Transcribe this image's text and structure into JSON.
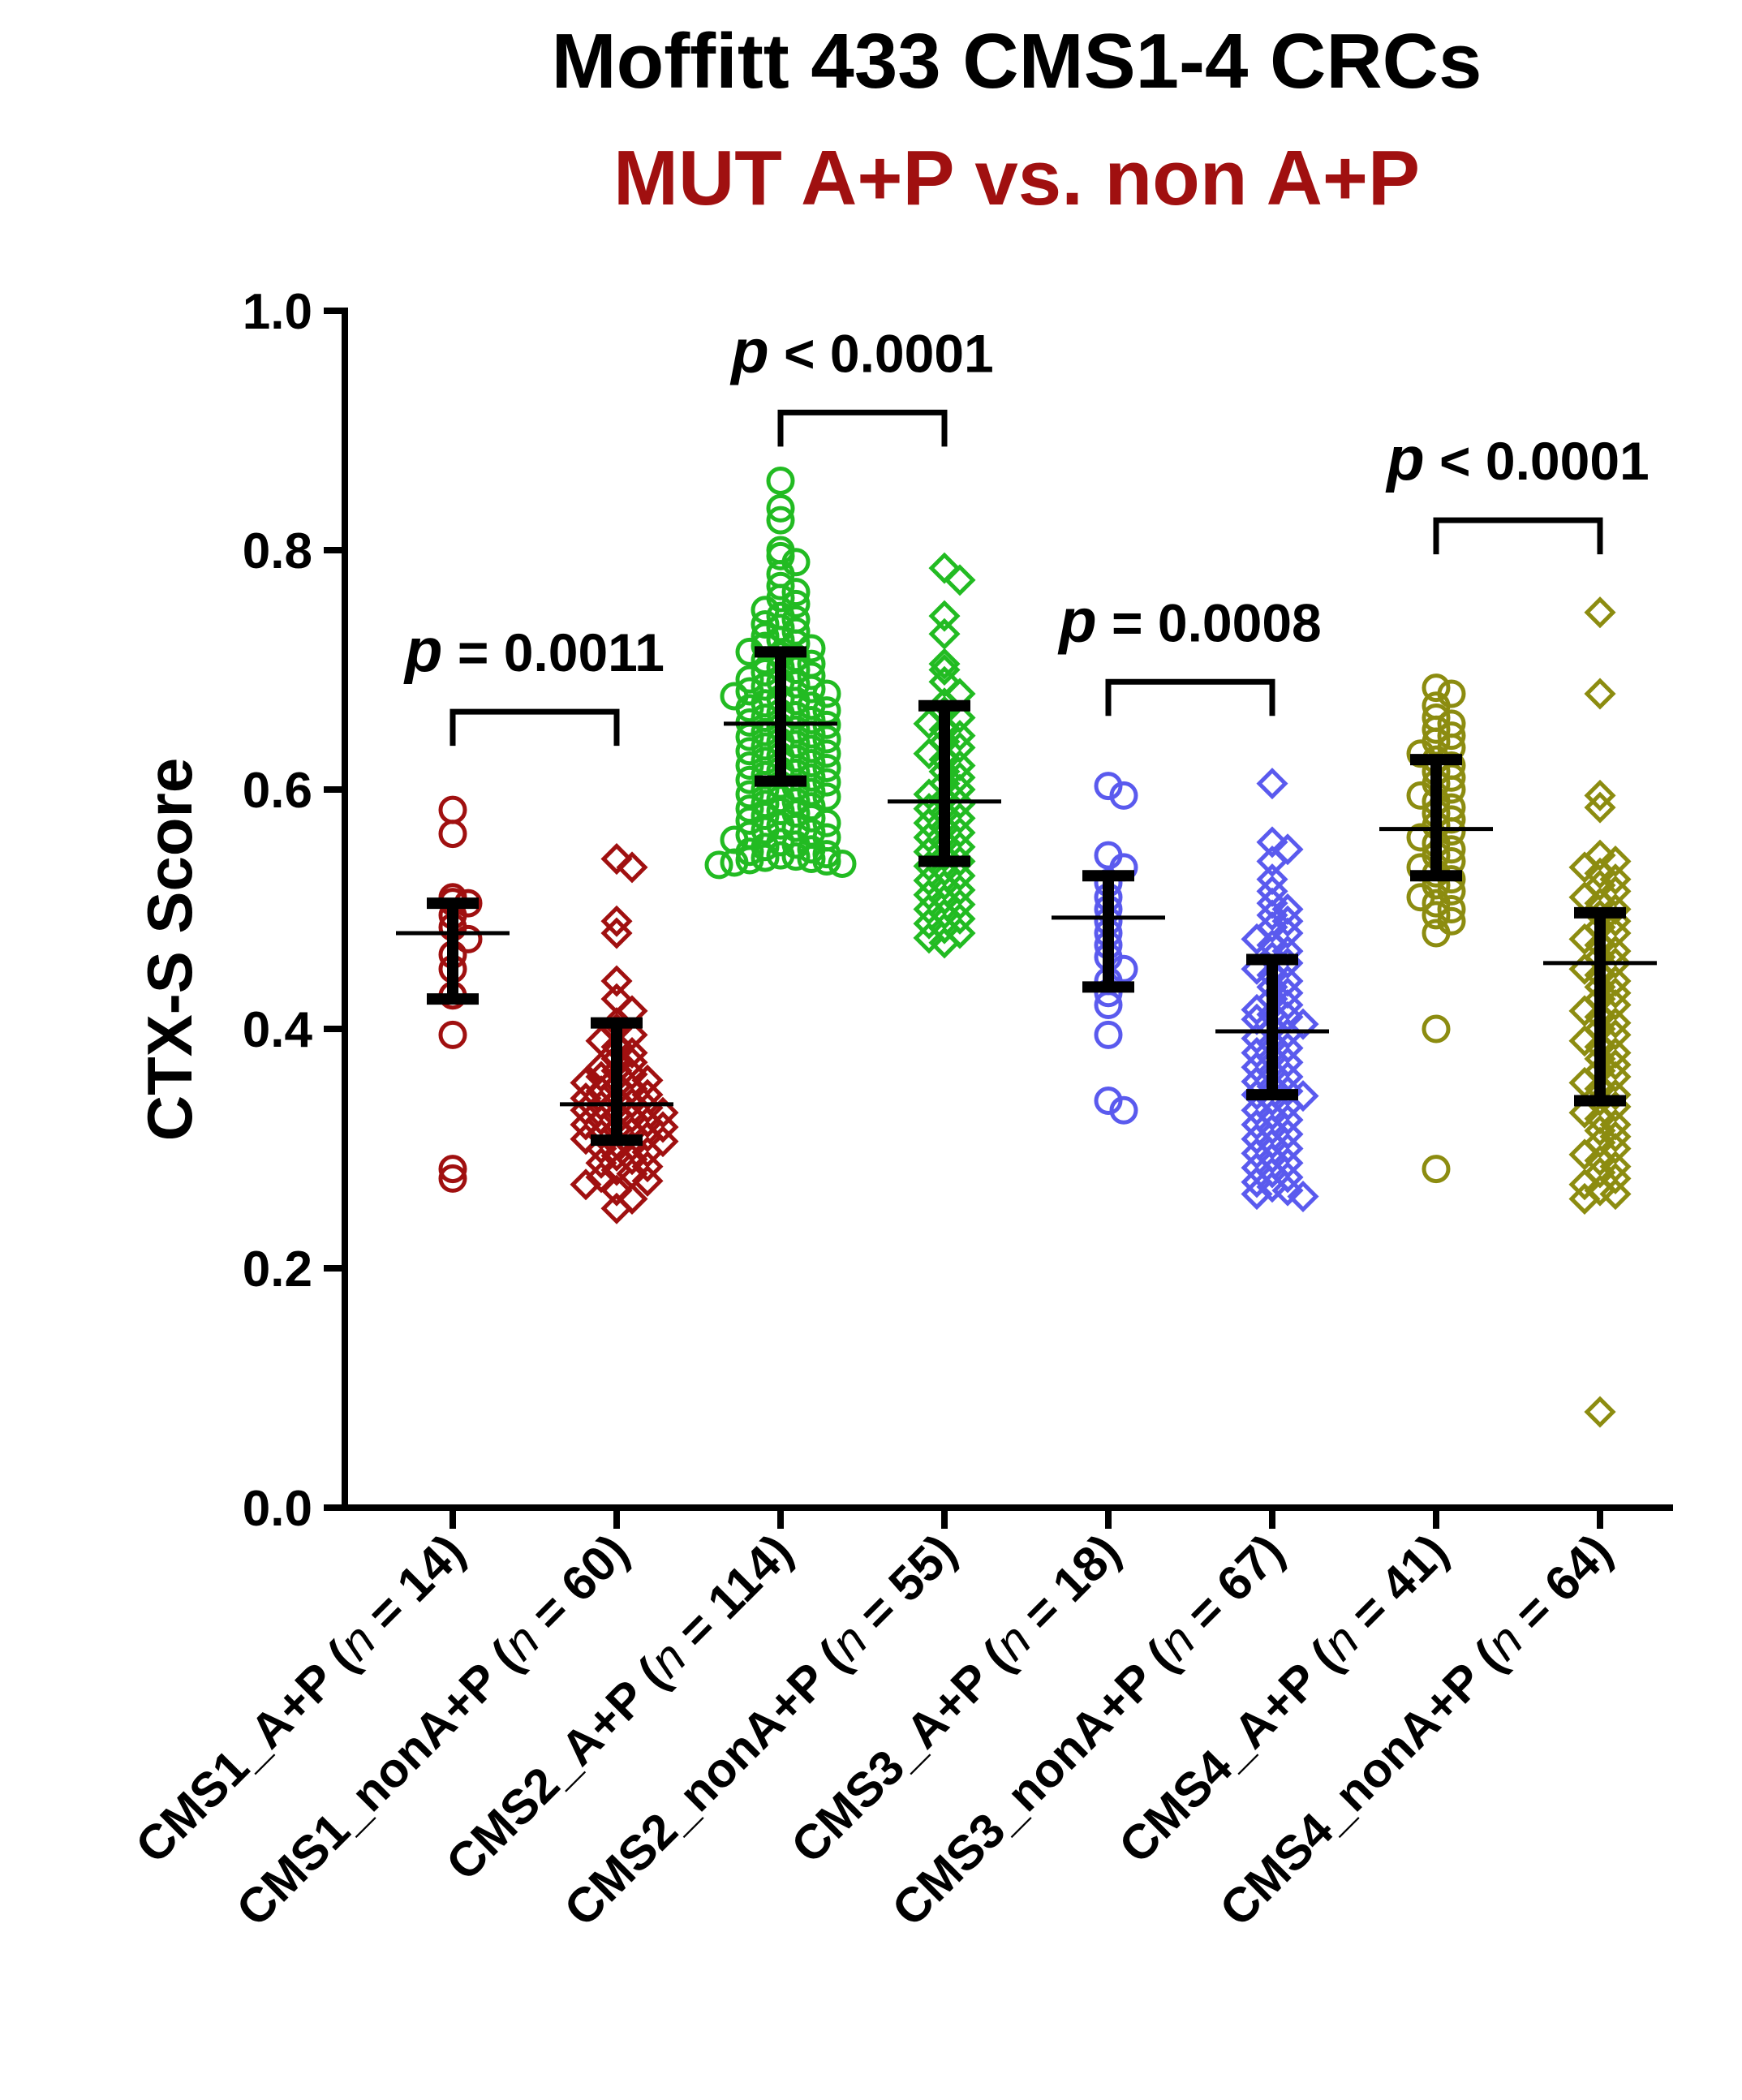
{
  "chart_data": {
    "type": "scatter",
    "title": "Moffitt 433 CMS1-4 CRCs",
    "subtitle": "MUT A+P vs. non A+P",
    "subtitle_color": "#a01010",
    "ylabel": "CTX-S Score",
    "xlabel": "",
    "ylim": [
      0.0,
      1.0
    ],
    "yticks": [
      "0.0",
      "0.2",
      "0.4",
      "0.6",
      "0.8",
      "1.0"
    ],
    "grid": false,
    "groups": [
      {
        "name": "CMS1_A+P",
        "n_label": "n",
        "n_text": " = 14)",
        "label_prefix": "CMS1_A+P (",
        "marker": "circle",
        "color": "#a01010",
        "mean": 0.48,
        "lower": 0.425,
        "upper": 0.505,
        "values": [
          0.583,
          0.563,
          0.51,
          0.506,
          0.505,
          0.495,
          0.485,
          0.475,
          0.462,
          0.45,
          0.428,
          0.395,
          0.283,
          0.275
        ]
      },
      {
        "name": "CMS1_nonA+P",
        "n_label": "n",
        "n_text": " = 60)",
        "label_prefix": "CMS1_nonA+P (",
        "marker": "diamond",
        "color": "#a01010",
        "mean": 0.337,
        "lower": 0.307,
        "upper": 0.405,
        "values": [
          0.542,
          0.535,
          0.49,
          0.48,
          0.44,
          0.425,
          0.415,
          0.405,
          0.4,
          0.395,
          0.39,
          0.385,
          0.38,
          0.375,
          0.372,
          0.368,
          0.365,
          0.362,
          0.36,
          0.357,
          0.355,
          0.352,
          0.35,
          0.348,
          0.345,
          0.342,
          0.34,
          0.338,
          0.336,
          0.334,
          0.332,
          0.33,
          0.328,
          0.326,
          0.324,
          0.322,
          0.32,
          0.318,
          0.316,
          0.314,
          0.312,
          0.31,
          0.308,
          0.306,
          0.304,
          0.302,
          0.3,
          0.297,
          0.294,
          0.291,
          0.288,
          0.285,
          0.282,
          0.279,
          0.276,
          0.273,
          0.27,
          0.265,
          0.258,
          0.25
        ]
      },
      {
        "name": "CMS2_A+P",
        "n_label": "n",
        "n_text": " = 114)",
        "label_prefix": "CMS2_A+P (",
        "marker": "circle",
        "color": "#22bb22",
        "mean": 0.655,
        "lower": 0.607,
        "upper": 0.715,
        "values": [
          0.858,
          0.835,
          0.825,
          0.8,
          0.795,
          0.79,
          0.78,
          0.77,
          0.765,
          0.76,
          0.755,
          0.75,
          0.745,
          0.742,
          0.738,
          0.735,
          0.732,
          0.728,
          0.725,
          0.722,
          0.72,
          0.718,
          0.715,
          0.712,
          0.71,
          0.708,
          0.705,
          0.702,
          0.7,
          0.698,
          0.695,
          0.692,
          0.69,
          0.688,
          0.686,
          0.684,
          0.682,
          0.68,
          0.678,
          0.676,
          0.674,
          0.672,
          0.67,
          0.668,
          0.666,
          0.664,
          0.662,
          0.66,
          0.658,
          0.656,
          0.654,
          0.652,
          0.65,
          0.648,
          0.646,
          0.644,
          0.642,
          0.64,
          0.638,
          0.636,
          0.634,
          0.632,
          0.63,
          0.628,
          0.626,
          0.624,
          0.622,
          0.62,
          0.618,
          0.616,
          0.614,
          0.612,
          0.61,
          0.608,
          0.606,
          0.604,
          0.602,
          0.6,
          0.598,
          0.596,
          0.594,
          0.592,
          0.59,
          0.588,
          0.586,
          0.584,
          0.582,
          0.58,
          0.578,
          0.576,
          0.574,
          0.572,
          0.57,
          0.568,
          0.566,
          0.564,
          0.562,
          0.56,
          0.558,
          0.556,
          0.554,
          0.552,
          0.55,
          0.548,
          0.546,
          0.545,
          0.544,
          0.543,
          0.542,
          0.541,
          0.54,
          0.539,
          0.538,
          0.537
        ]
      },
      {
        "name": "CMS2_nonA+P",
        "n_label": "n",
        "n_text": " = 55)",
        "label_prefix": "CMS2_nonA+P (",
        "marker": "diamond",
        "color": "#22bb22",
        "mean": 0.59,
        "lower": 0.54,
        "upper": 0.67,
        "values": [
          0.785,
          0.775,
          0.745,
          0.73,
          0.705,
          0.7,
          0.69,
          0.68,
          0.672,
          0.665,
          0.66,
          0.655,
          0.65,
          0.645,
          0.64,
          0.635,
          0.63,
          0.625,
          0.62,
          0.615,
          0.61,
          0.605,
          0.6,
          0.596,
          0.592,
          0.588,
          0.584,
          0.58,
          0.576,
          0.572,
          0.568,
          0.564,
          0.56,
          0.556,
          0.552,
          0.548,
          0.544,
          0.54,
          0.536,
          0.532,
          0.528,
          0.524,
          0.52,
          0.516,
          0.512,
          0.508,
          0.504,
          0.5,
          0.496,
          0.492,
          0.488,
          0.484,
          0.48,
          0.476,
          0.472
        ]
      },
      {
        "name": "CMS3_A+P",
        "n_label": "n",
        "n_text": " = 18)",
        "label_prefix": "CMS3_A+P (",
        "marker": "circle",
        "color": "#5a5aee",
        "mean": 0.493,
        "lower": 0.435,
        "upper": 0.528,
        "values": [
          0.603,
          0.595,
          0.545,
          0.535,
          0.522,
          0.51,
          0.5,
          0.49,
          0.48,
          0.47,
          0.46,
          0.45,
          0.44,
          0.43,
          0.42,
          0.395,
          0.34,
          0.332
        ]
      },
      {
        "name": "CMS3_nonA+P",
        "n_label": "n",
        "n_text": " = 67)",
        "label_prefix": "CMS3_nonA+P (",
        "marker": "diamond",
        "color": "#5a5aee",
        "mean": 0.398,
        "lower": 0.345,
        "upper": 0.458,
        "values": [
          0.605,
          0.556,
          0.55,
          0.54,
          0.525,
          0.515,
          0.505,
          0.5,
          0.495,
          0.49,
          0.485,
          0.48,
          0.475,
          0.47,
          0.465,
          0.46,
          0.455,
          0.45,
          0.445,
          0.44,
          0.435,
          0.43,
          0.425,
          0.42,
          0.416,
          0.412,
          0.408,
          0.404,
          0.4,
          0.396,
          0.392,
          0.388,
          0.384,
          0.38,
          0.376,
          0.372,
          0.368,
          0.364,
          0.36,
          0.356,
          0.352,
          0.348,
          0.344,
          0.34,
          0.336,
          0.332,
          0.328,
          0.324,
          0.32,
          0.316,
          0.312,
          0.308,
          0.304,
          0.3,
          0.296,
          0.292,
          0.288,
          0.284,
          0.28,
          0.276,
          0.272,
          0.268,
          0.265,
          0.262,
          0.26,
          0.345,
          0.41
        ]
      },
      {
        "name": "CMS4_A+P",
        "n_label": "n",
        "n_text": " = 41)",
        "label_prefix": "CMS4_A+P (",
        "marker": "circle",
        "color": "#8c8c10",
        "mean": 0.567,
        "lower": 0.528,
        "upper": 0.625,
        "values": [
          0.685,
          0.68,
          0.67,
          0.66,
          0.655,
          0.65,
          0.645,
          0.64,
          0.635,
          0.63,
          0.625,
          0.62,
          0.615,
          0.61,
          0.605,
          0.6,
          0.595,
          0.59,
          0.585,
          0.58,
          0.575,
          0.57,
          0.565,
          0.56,
          0.555,
          0.55,
          0.545,
          0.54,
          0.535,
          0.53,
          0.525,
          0.52,
          0.515,
          0.51,
          0.505,
          0.5,
          0.495,
          0.49,
          0.48,
          0.4,
          0.283
        ]
      },
      {
        "name": "CMS4_nonA+P",
        "n_label": "n",
        "n_text": " = 64)",
        "label_prefix": "CMS4_nonA+P (",
        "marker": "diamond",
        "color": "#8c8c10",
        "mean": 0.455,
        "lower": 0.34,
        "upper": 0.497,
        "values": [
          0.748,
          0.68,
          0.595,
          0.585,
          0.545,
          0.54,
          0.535,
          0.53,
          0.525,
          0.52,
          0.515,
          0.51,
          0.505,
          0.5,
          0.495,
          0.49,
          0.485,
          0.48,
          0.475,
          0.47,
          0.465,
          0.46,
          0.455,
          0.45,
          0.445,
          0.44,
          0.435,
          0.43,
          0.425,
          0.42,
          0.415,
          0.41,
          0.405,
          0.4,
          0.395,
          0.39,
          0.385,
          0.38,
          0.375,
          0.37,
          0.365,
          0.36,
          0.355,
          0.35,
          0.345,
          0.34,
          0.335,
          0.33,
          0.325,
          0.32,
          0.315,
          0.31,
          0.305,
          0.3,
          0.295,
          0.29,
          0.285,
          0.28,
          0.275,
          0.27,
          0.265,
          0.262,
          0.258,
          0.08
        ]
      }
    ],
    "comparisons": [
      {
        "from": 0,
        "to": 1,
        "bracket_y": 0.665,
        "p_symbol": "p",
        "p_text": " = 0.0011"
      },
      {
        "from": 2,
        "to": 3,
        "bracket_y": 0.915,
        "p_symbol": "p",
        "p_text": " < 0.0001"
      },
      {
        "from": 4,
        "to": 5,
        "bracket_y": 0.69,
        "p_symbol": "p",
        "p_text": " = 0.0008"
      },
      {
        "from": 6,
        "to": 7,
        "bracket_y": 0.825,
        "p_symbol": "p",
        "p_text": " < 0.0001"
      }
    ]
  }
}
